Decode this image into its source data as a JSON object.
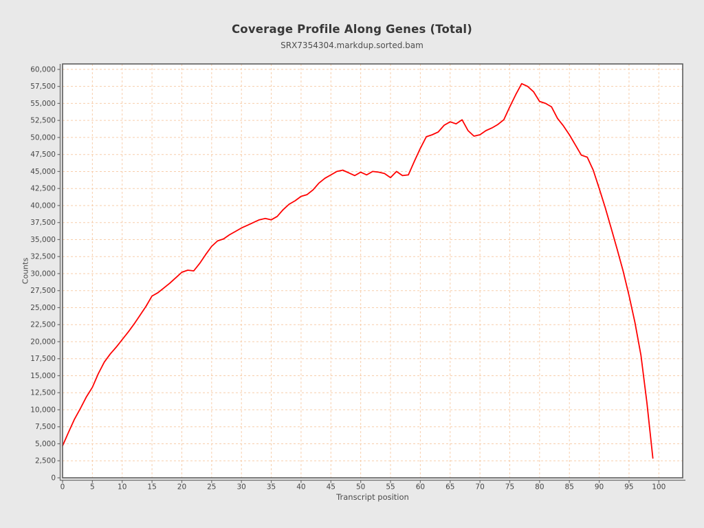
{
  "page": {
    "background_color": "#e9e9e9",
    "plot_background_color": "#ffffff"
  },
  "chart": {
    "title": "Coverage Profile Along Genes (Total)",
    "subtitle": "SRX7354304.markdup.sorted.bam"
  },
  "chart_data": {
    "type": "line",
    "title": "Coverage Profile Along Genes (Total)",
    "subtitle": "SRX7354304.markdup.sorted.bam",
    "xlabel": "Transcript position",
    "ylabel": "Counts",
    "xlim": [
      0,
      104
    ],
    "ylim": [
      0,
      60800
    ],
    "x_ticks": [
      0,
      5,
      10,
      15,
      20,
      25,
      30,
      35,
      40,
      45,
      50,
      55,
      60,
      65,
      70,
      75,
      80,
      85,
      90,
      95,
      100
    ],
    "y_ticks": [
      0,
      2500,
      5000,
      7500,
      10000,
      12500,
      15000,
      17500,
      20000,
      22500,
      25000,
      27500,
      30000,
      32500,
      35000,
      37500,
      40000,
      42500,
      45000,
      47500,
      50000,
      52500,
      55000,
      57500,
      60000
    ],
    "grid": "dashed",
    "legend": "none",
    "colors": {
      "line": "#ff0000",
      "grid": "#f7cdaa",
      "frame": "#5c5c5c",
      "axis": "#6e6e6e",
      "tick_text": "#464646"
    },
    "series": [
      {
        "name": "Total coverage",
        "x": [
          0,
          1,
          2,
          3,
          4,
          5,
          6,
          7,
          8,
          9,
          10,
          11,
          12,
          13,
          14,
          15,
          16,
          17,
          18,
          19,
          20,
          21,
          22,
          23,
          24,
          25,
          26,
          27,
          28,
          29,
          30,
          31,
          32,
          33,
          34,
          35,
          36,
          37,
          38,
          39,
          40,
          41,
          42,
          43,
          44,
          45,
          46,
          47,
          48,
          49,
          50,
          51,
          52,
          53,
          54,
          55,
          56,
          57,
          58,
          59,
          60,
          61,
          62,
          63,
          64,
          65,
          66,
          67,
          68,
          69,
          70,
          71,
          72,
          73,
          74,
          75,
          76,
          77,
          78,
          79,
          80,
          81,
          82,
          83,
          84,
          85,
          86,
          87,
          88,
          89,
          90,
          91,
          92,
          93,
          94,
          95,
          96,
          97,
          98,
          99
        ],
        "values": [
          4700,
          6700,
          8600,
          10200,
          11900,
          13300,
          15300,
          17000,
          18200,
          19200,
          20300,
          21400,
          22600,
          23900,
          25200,
          26700,
          27200,
          27900,
          28600,
          29400,
          30200,
          30500,
          30400,
          31500,
          32800,
          34000,
          34800,
          35100,
          35700,
          36200,
          36700,
          37100,
          37500,
          37900,
          38100,
          37900,
          38400,
          39400,
          40200,
          40700,
          41350,
          41600,
          42300,
          43300,
          44000,
          44500,
          45000,
          45200,
          44800,
          44400,
          44900,
          44500,
          45000,
          44900,
          44700,
          44100,
          45000,
          44400,
          44500,
          46500,
          48400,
          50100,
          50400,
          50800,
          51800,
          52300,
          52000,
          52600,
          51000,
          50200,
          50400,
          51000,
          51400,
          51900,
          52600,
          54500,
          56300,
          57900,
          57500,
          56700,
          55300,
          55000,
          54500,
          52800,
          51700,
          50400,
          48900,
          47400,
          47100,
          45200,
          42500,
          39700,
          36700,
          33600,
          30400,
          26800,
          22800,
          18000,
          11000,
          2900
        ]
      }
    ]
  }
}
